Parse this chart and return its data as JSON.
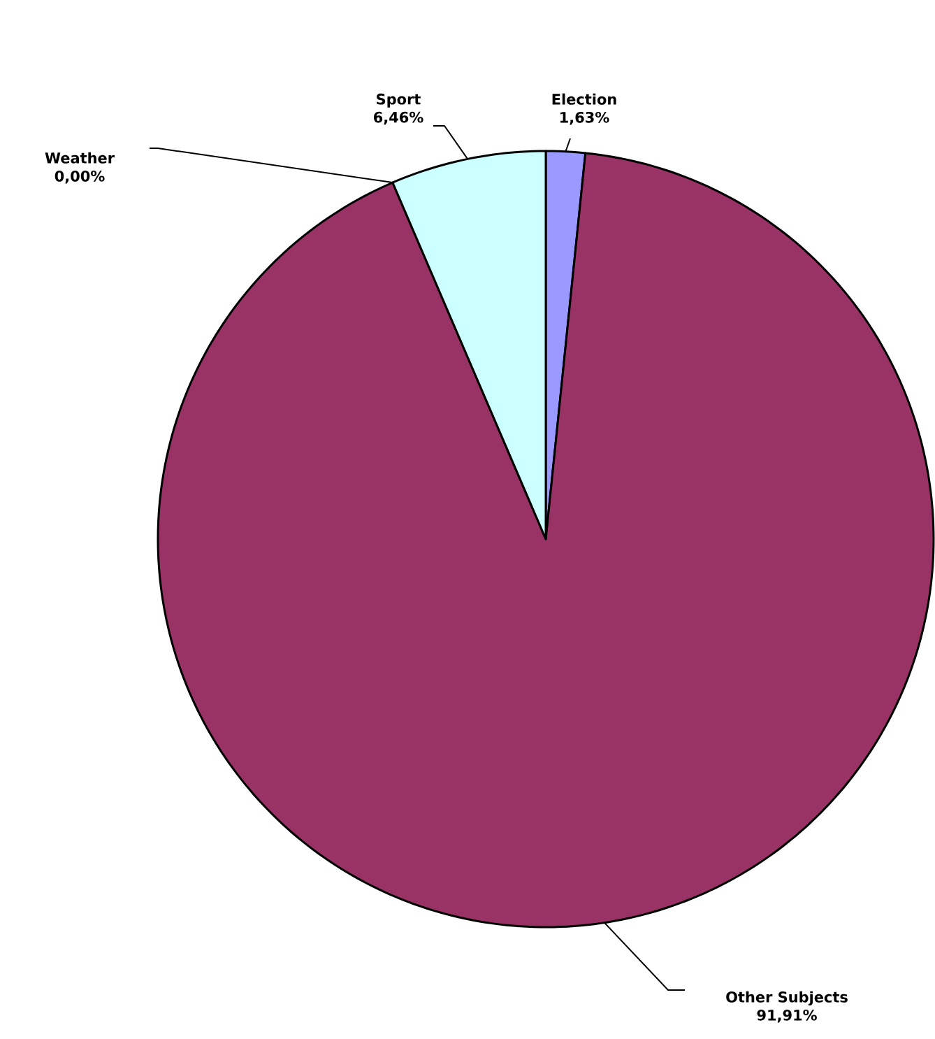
{
  "chart_data": {
    "type": "pie",
    "categories": [
      "Election",
      "Other Subjects",
      "Weather",
      "Sport"
    ],
    "values": [
      1.63,
      91.91,
      0.0,
      6.46
    ],
    "colors": [
      "#9999ff",
      "#993366",
      "#ffffcc",
      "#ccffff"
    ],
    "value_labels": [
      "1,63%",
      "91,91%",
      "0,00%",
      "6,46%"
    ]
  }
}
